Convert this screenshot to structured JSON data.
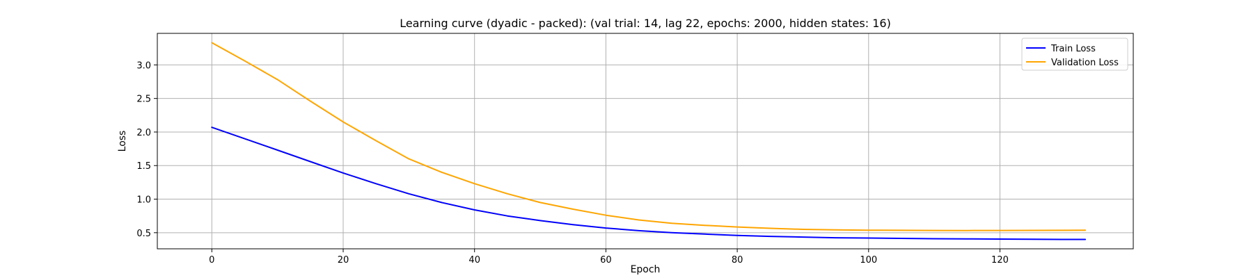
{
  "chart_data": {
    "type": "line",
    "title": "Learning curve (dyadic - packed): (val trial: 14, lag 22, epochs: 2000, hidden states: 16)",
    "xlabel": "Epoch",
    "ylabel": "Loss",
    "xlim": [
      -8.3,
      140.3
    ],
    "ylim": [
      0.26,
      3.47
    ],
    "xticks": [
      0,
      20,
      40,
      60,
      80,
      100,
      120
    ],
    "yticks": [
      0.5,
      1.0,
      1.5,
      2.0,
      2.5,
      3.0
    ],
    "ytick_labels": [
      "0.5",
      "1.0",
      "1.5",
      "2.0",
      "2.5",
      "3.0"
    ],
    "grid": true,
    "legend_position": "top-right",
    "series": [
      {
        "name": "Train Loss",
        "color": "#0000ff",
        "x": [
          0,
          5,
          10,
          15,
          20,
          25,
          30,
          35,
          40,
          45,
          50,
          55,
          60,
          65,
          70,
          75,
          80,
          85,
          90,
          95,
          100,
          105,
          110,
          115,
          120,
          125,
          130,
          133
        ],
        "y": [
          2.07,
          1.9,
          1.73,
          1.56,
          1.39,
          1.23,
          1.08,
          0.95,
          0.84,
          0.75,
          0.68,
          0.62,
          0.57,
          0.53,
          0.5,
          0.48,
          0.46,
          0.445,
          0.435,
          0.425,
          0.42,
          0.415,
          0.41,
          0.408,
          0.405,
          0.402,
          0.4,
          0.4
        ]
      },
      {
        "name": "Validation Loss",
        "color": "#ffa500",
        "x": [
          0,
          5,
          10,
          15,
          20,
          25,
          30,
          35,
          40,
          45,
          50,
          55,
          60,
          65,
          70,
          75,
          80,
          85,
          90,
          95,
          100,
          105,
          110,
          115,
          120,
          125,
          130,
          133
        ],
        "y": [
          3.33,
          3.06,
          2.78,
          2.46,
          2.15,
          1.87,
          1.6,
          1.4,
          1.23,
          1.08,
          0.95,
          0.85,
          0.76,
          0.69,
          0.64,
          0.61,
          0.585,
          0.565,
          0.55,
          0.542,
          0.538,
          0.535,
          0.533,
          0.532,
          0.533,
          0.534,
          0.535,
          0.536
        ]
      }
    ]
  }
}
